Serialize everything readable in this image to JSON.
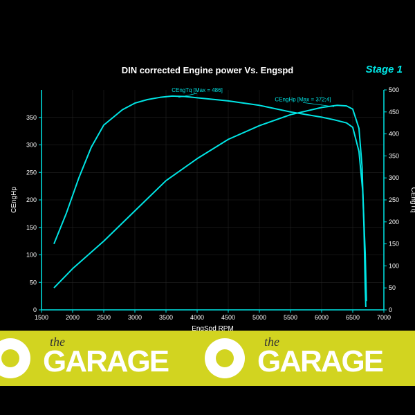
{
  "title": "DIN corrected Engine power Vs. Engspd",
  "stage_label": "Stage 1",
  "chart": {
    "type": "line",
    "background_color": "#000000",
    "grid_color": "#2a2a2a",
    "axis_color": "#00e5e5",
    "line_color": "#00e5e5",
    "line_width": 2,
    "x_axis": {
      "label": "EngSpd RPM",
      "min": 1500,
      "max": 7000,
      "ticks": [
        1500,
        2000,
        2500,
        3000,
        3500,
        4000,
        4500,
        5000,
        5500,
        6000,
        6500,
        7000
      ],
      "label_fontsize": 10
    },
    "y_left": {
      "label": "CEngHp",
      "min": 0,
      "max": 400,
      "ticks": [
        0,
        50,
        100,
        150,
        200,
        250,
        300,
        350
      ],
      "label_fontsize": 10
    },
    "y_right": {
      "label": "CEngTq",
      "min": 0,
      "max": 500,
      "ticks": [
        0,
        50,
        100,
        150,
        200,
        250,
        300,
        350,
        400,
        450,
        500
      ],
      "label_fontsize": 10
    },
    "series_hp": {
      "name": "CEngHp",
      "axis": "left",
      "annotation": "CEngHp [Max = 372;4]",
      "points": [
        [
          1700,
          40
        ],
        [
          2000,
          75
        ],
        [
          2500,
          125
        ],
        [
          3000,
          180
        ],
        [
          3500,
          235
        ],
        [
          4000,
          275
        ],
        [
          4500,
          310
        ],
        [
          5000,
          335
        ],
        [
          5500,
          355
        ],
        [
          6000,
          368
        ],
        [
          6250,
          372
        ],
        [
          6400,
          371
        ],
        [
          6500,
          365
        ],
        [
          6600,
          330
        ],
        [
          6650,
          260
        ],
        [
          6680,
          150
        ],
        [
          6700,
          40
        ],
        [
          6710,
          5
        ]
      ]
    },
    "series_tq": {
      "name": "CEngTq",
      "axis": "right",
      "annotation": "CEngTq [Max = 486]",
      "points": [
        [
          1700,
          150
        ],
        [
          1900,
          220
        ],
        [
          2100,
          300
        ],
        [
          2300,
          370
        ],
        [
          2500,
          420
        ],
        [
          2800,
          455
        ],
        [
          3000,
          470
        ],
        [
          3200,
          478
        ],
        [
          3400,
          483
        ],
        [
          3600,
          486
        ],
        [
          3800,
          485
        ],
        [
          4000,
          482
        ],
        [
          4500,
          475
        ],
        [
          5000,
          465
        ],
        [
          5500,
          450
        ],
        [
          6000,
          438
        ],
        [
          6200,
          432
        ],
        [
          6400,
          425
        ],
        [
          6500,
          415
        ],
        [
          6600,
          360
        ],
        [
          6660,
          270
        ],
        [
          6700,
          130
        ],
        [
          6720,
          20
        ]
      ]
    }
  },
  "watermark": {
    "text_small": "the",
    "text_large": "GARAGE",
    "bg_color": "#d2d420",
    "text_color": "#ffffff"
  }
}
